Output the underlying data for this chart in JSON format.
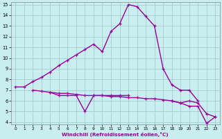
{
  "xlabel": "Windchill (Refroidissement éolien,°C)",
  "xlim": [
    -0.5,
    23.5
  ],
  "ylim": [
    3.8,
    15.2
  ],
  "yticks": [
    4,
    5,
    6,
    7,
    8,
    9,
    10,
    11,
    12,
    13,
    14,
    15
  ],
  "xticks": [
    0,
    1,
    2,
    3,
    4,
    5,
    6,
    7,
    8,
    9,
    10,
    11,
    12,
    13,
    14,
    15,
    16,
    17,
    18,
    19,
    20,
    21,
    22,
    23
  ],
  "bg_color": "#c8eef0",
  "grid_color": "#a0ccd0",
  "line_color": "#990099",
  "series": [
    {
      "x": [
        0,
        1,
        2,
        3,
        4,
        5,
        6,
        7,
        8,
        9,
        10,
        11,
        12,
        13,
        14,
        15,
        16,
        17,
        18,
        19,
        20,
        21
      ],
      "y": [
        7.3,
        7.3,
        7.8,
        8.2,
        8.7,
        9.3,
        9.8,
        10.3,
        10.8,
        11.3,
        10.6,
        12.5,
        13.2,
        15.0,
        14.8,
        13.9,
        13.0,
        9.0,
        7.5,
        7.0,
        7.0,
        6.0
      ]
    },
    {
      "x": [
        2,
        3,
        4,
        5,
        6,
        7,
        8,
        9,
        10,
        11,
        12,
        13,
        14,
        15,
        16,
        17,
        18,
        19,
        20,
        21,
        22,
        23
      ],
      "y": [
        7.0,
        6.9,
        6.8,
        6.7,
        6.7,
        6.6,
        6.5,
        6.5,
        6.5,
        6.4,
        6.4,
        6.3,
        6.3,
        6.2,
        6.2,
        6.1,
        6.0,
        5.8,
        6.0,
        5.8,
        4.8,
        4.5
      ]
    },
    {
      "x": [
        4,
        5,
        6,
        7,
        8,
        9,
        10,
        11,
        12,
        13
      ],
      "y": [
        6.8,
        6.5,
        6.5,
        6.5,
        5.0,
        6.5,
        6.5,
        6.5,
        6.5,
        6.5
      ]
    },
    {
      "x": [
        18,
        19,
        20,
        21,
        22,
        23
      ],
      "y": [
        6.0,
        5.8,
        5.5,
        5.5,
        3.9,
        4.5
      ]
    }
  ]
}
